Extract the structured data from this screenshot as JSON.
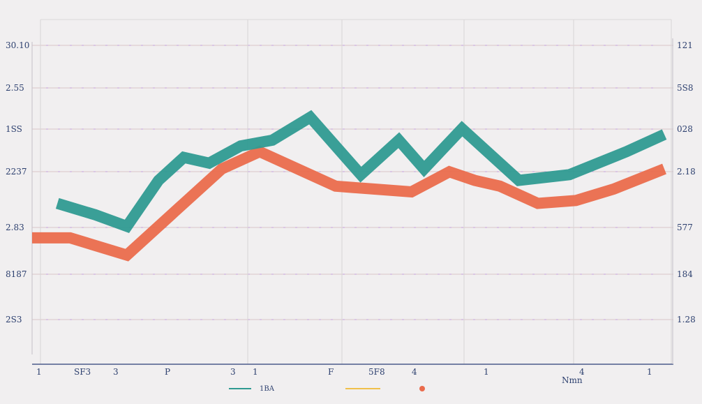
{
  "chart_data": {
    "type": "line",
    "title": "",
    "xlabel": "",
    "ylabel": "",
    "grid": true,
    "legend_position": "bottom",
    "y_ticks_left": [
      "30.10",
      "2.55",
      "1SS",
      "2237",
      "2.83",
      "8187",
      "2S3"
    ],
    "y_ticks_right": [
      "121",
      "5S8",
      "028",
      "2.18",
      "577",
      "184",
      "1.28"
    ],
    "x_ticks": [
      "1",
      "SF3",
      "3",
      "P",
      "3",
      "1",
      "F",
      "5F8",
      "4",
      "1",
      "4",
      "1"
    ],
    "x_label_right": "Nmn",
    "ylim": [
      0,
      600
    ],
    "x_range": [
      0,
      100
    ],
    "series": [
      {
        "name": "1BA",
        "color": "#2f9a91",
        "points": [
          [
            4,
            280
          ],
          [
            10,
            260
          ],
          [
            15,
            240
          ],
          [
            20,
            320
          ],
          [
            24,
            360
          ],
          [
            28,
            350
          ],
          [
            33,
            380
          ],
          [
            38,
            390
          ],
          [
            44,
            430
          ],
          [
            52,
            330
          ],
          [
            58,
            390
          ],
          [
            62,
            340
          ],
          [
            68,
            410
          ],
          [
            72,
            370
          ],
          [
            77,
            320
          ],
          [
            85,
            330
          ],
          [
            94,
            370
          ],
          [
            100,
            400
          ]
        ]
      },
      {
        "name": "",
        "color": "#ea6b4c",
        "points": [
          [
            0,
            220
          ],
          [
            6,
            220
          ],
          [
            15,
            190
          ],
          [
            22,
            260
          ],
          [
            30,
            340
          ],
          [
            36,
            370
          ],
          [
            48,
            310
          ],
          [
            54,
            305
          ],
          [
            60,
            300
          ],
          [
            66,
            335
          ],
          [
            70,
            320
          ],
          [
            74,
            310
          ],
          [
            80,
            280
          ],
          [
            86,
            285
          ],
          [
            92,
            305
          ],
          [
            100,
            340
          ]
        ]
      }
    ]
  }
}
